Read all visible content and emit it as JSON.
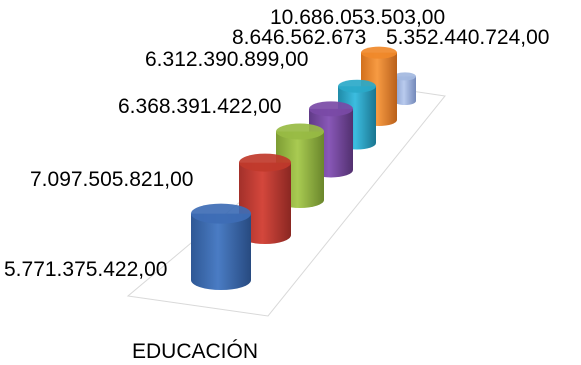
{
  "chart_data": {
    "type": "bar",
    "style": "3d-cylinder",
    "categories": [
      "EDUCACIÓN"
    ],
    "category_label": "EDUCACIÓN",
    "series": [
      {
        "values": [
          5771375422.0
        ],
        "label": "5.771.375.422,00",
        "color": "#3e6db5"
      },
      {
        "values": [
          7097505821.0
        ],
        "label": "7.097.505.821,00",
        "color": "#c0392b"
      },
      {
        "values": [
          6850000000.0
        ],
        "label": "",
        "color": "#98bb44"
      },
      {
        "values": [
          6368391422.0
        ],
        "label": "6.368.391.422,00",
        "color": "#7a4aa6"
      },
      {
        "values": [
          6312390899.0
        ],
        "label": "6.312.390.899,00",
        "color": "#2aa9c9"
      },
      {
        "values": [
          10686053503.0
        ],
        "label": "10.686.053.503,00",
        "color": "#f0892a"
      },
      {
        "values": [
          5352440724.0
        ],
        "label": "5.352.440.724,00",
        "color": "#a3b8e0"
      }
    ],
    "extra_labels": [
      "8.646.562.673"
    ],
    "grid": false,
    "legend": "none"
  }
}
